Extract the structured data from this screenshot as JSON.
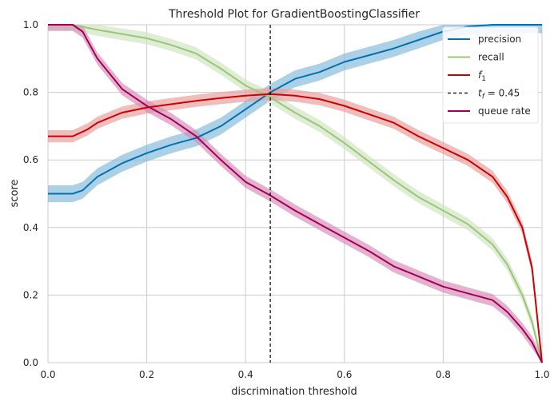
{
  "chart_data": {
    "type": "line",
    "title": "Threshold Plot for GradientBoostingClassifier",
    "xlabel": "discrimination threshold",
    "ylabel": "score",
    "xlim": [
      0,
      1
    ],
    "ylim": [
      0,
      1
    ],
    "xticks": [
      "0.0",
      "0.2",
      "0.4",
      "0.6",
      "0.8",
      "1.0"
    ],
    "yticks": [
      "0.0",
      "0.2",
      "0.4",
      "0.6",
      "0.8",
      "1.0"
    ],
    "grid": true,
    "legend_position": "top-right",
    "threshold": {
      "value": 0.45,
      "label_prefix": "t",
      "label_sub": "f",
      "label_suffix": " = 0.45",
      "color": "#000000"
    },
    "series": [
      {
        "name": "precision",
        "color": "#0072B2",
        "band_color": "#7fb8d8",
        "x": [
          0,
          0.05,
          0.07,
          0.1,
          0.15,
          0.2,
          0.25,
          0.3,
          0.35,
          0.4,
          0.45,
          0.5,
          0.55,
          0.6,
          0.65,
          0.7,
          0.75,
          0.8,
          0.85,
          0.9,
          0.95,
          1.0
        ],
        "y": [
          0.5,
          0.5,
          0.51,
          0.55,
          0.59,
          0.62,
          0.645,
          0.665,
          0.7,
          0.75,
          0.8,
          0.84,
          0.86,
          0.89,
          0.91,
          0.93,
          0.955,
          0.98,
          0.995,
          1.0,
          1.0,
          1.0
        ],
        "band": 0.025
      },
      {
        "name": "recall",
        "color": "#9BC57B",
        "band_color": "#cfe3bf",
        "x": [
          0,
          0.05,
          0.1,
          0.2,
          0.25,
          0.3,
          0.35,
          0.4,
          0.45,
          0.5,
          0.55,
          0.6,
          0.65,
          0.7,
          0.75,
          0.8,
          0.85,
          0.9,
          0.93,
          0.96,
          0.98,
          1.0
        ],
        "y": [
          1.0,
          1.0,
          0.985,
          0.96,
          0.94,
          0.915,
          0.87,
          0.82,
          0.785,
          0.74,
          0.7,
          0.65,
          0.595,
          0.54,
          0.49,
          0.45,
          0.41,
          0.35,
          0.29,
          0.2,
          0.12,
          0.0
        ],
        "band": 0.018
      },
      {
        "name": "f1",
        "label_main": "f",
        "label_sub": "1",
        "color": "#CC0000",
        "band_color": "#e89a99",
        "x": [
          0,
          0.05,
          0.08,
          0.1,
          0.15,
          0.2,
          0.25,
          0.3,
          0.35,
          0.4,
          0.45,
          0.5,
          0.55,
          0.6,
          0.65,
          0.7,
          0.75,
          0.8,
          0.85,
          0.9,
          0.93,
          0.96,
          0.98,
          1.0
        ],
        "y": [
          0.67,
          0.67,
          0.69,
          0.71,
          0.74,
          0.755,
          0.765,
          0.775,
          0.783,
          0.79,
          0.795,
          0.79,
          0.78,
          0.76,
          0.735,
          0.71,
          0.67,
          0.635,
          0.6,
          0.55,
          0.49,
          0.4,
          0.28,
          0.0
        ],
        "band": 0.018
      },
      {
        "name": "queue rate",
        "color": "#A0005A",
        "band_color": "#d789b4",
        "x": [
          0,
          0.05,
          0.07,
          0.1,
          0.15,
          0.2,
          0.25,
          0.3,
          0.35,
          0.4,
          0.45,
          0.5,
          0.55,
          0.6,
          0.65,
          0.7,
          0.75,
          0.8,
          0.85,
          0.9,
          0.93,
          0.96,
          0.98,
          1.0
        ],
        "y": [
          1.0,
          1.0,
          0.98,
          0.9,
          0.81,
          0.76,
          0.72,
          0.67,
          0.6,
          0.535,
          0.495,
          0.45,
          0.41,
          0.37,
          0.33,
          0.285,
          0.255,
          0.225,
          0.205,
          0.185,
          0.15,
          0.1,
          0.06,
          0.0
        ],
        "band": 0.018
      }
    ]
  }
}
